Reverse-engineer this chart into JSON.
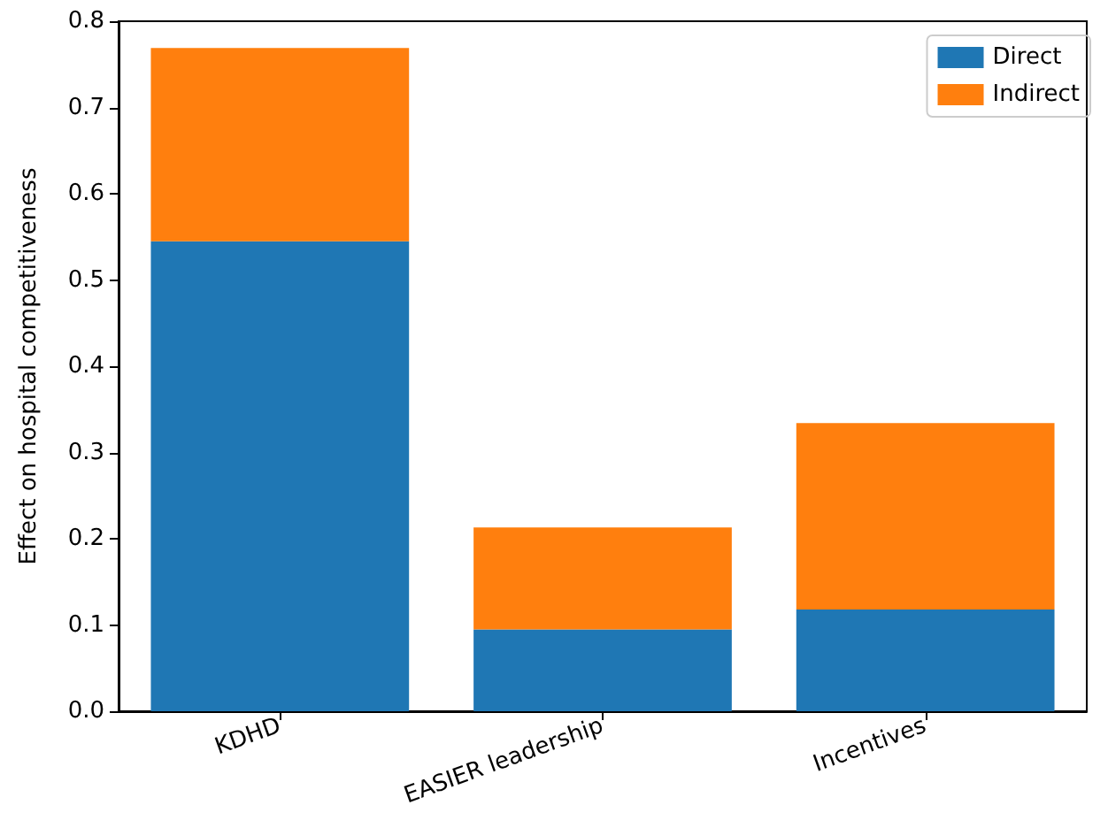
{
  "chart_data": {
    "type": "bar",
    "stacked": true,
    "ylabel": "Effect on hospital competitiveness",
    "categories": [
      "KDHD",
      "EASIER leadership",
      "Incentives"
    ],
    "series": [
      {
        "name": "Direct",
        "color": "#1f77b4",
        "values": [
          0.545,
          0.095,
          0.118
        ]
      },
      {
        "name": "Indirect",
        "color": "#ff7f0e",
        "values": [
          0.224,
          0.118,
          0.216
        ]
      }
    ],
    "ylim": [
      0,
      0.8
    ],
    "yticks": [
      {
        "value": 0,
        "label": "0.0"
      },
      {
        "value": 0.1,
        "label": "0.1"
      },
      {
        "value": 0.2,
        "label": "0.2"
      },
      {
        "value": 0.3,
        "label": "0.3"
      },
      {
        "value": 0.4,
        "label": "0.4"
      },
      {
        "value": 0.5,
        "label": "0.5"
      },
      {
        "value": 0.6,
        "label": "0.6"
      },
      {
        "value": 0.7,
        "label": "0.7"
      },
      {
        "value": 0.8,
        "label": "0.8"
      }
    ],
    "grid": false,
    "legend": "top right"
  }
}
